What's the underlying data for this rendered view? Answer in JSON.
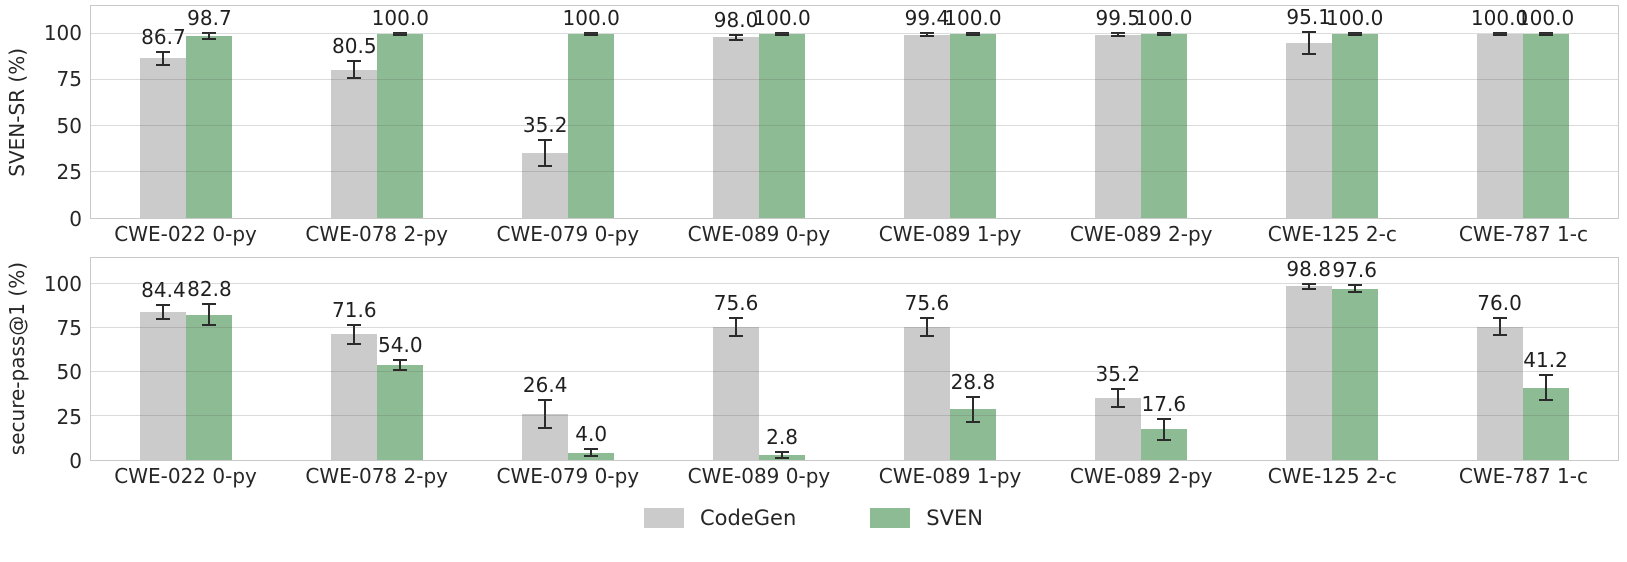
{
  "chart_data": [
    {
      "type": "bar",
      "ylabel": "SVEN-SR (%)",
      "xlabel": "",
      "ylim": [
        0,
        115
      ],
      "yticks": [
        0,
        25,
        50,
        75,
        100
      ],
      "grid": "horizontal",
      "categories": [
        "CWE-022 0-py",
        "CWE-078 2-py",
        "CWE-079 0-py",
        "CWE-089 0-py",
        "CWE-089 1-py",
        "CWE-089 2-py",
        "CWE-125 2-c",
        "CWE-787 1-c"
      ],
      "series": [
        {
          "name": "CodeGen",
          "color": "#cbcbcb",
          "values": [
            86.7,
            80.5,
            35.2,
            98.0,
            99.4,
            99.5,
            95.1,
            100.0
          ],
          "errors": [
            3.5,
            4.5,
            7.0,
            1.5,
            0.8,
            0.8,
            6.0,
            0.5
          ]
        },
        {
          "name": "SVEN",
          "color": "#8dbb93",
          "values": [
            98.7,
            100.0,
            100.0,
            100.0,
            100.0,
            100.0,
            100.0,
            100.0
          ],
          "errors": [
            1.4,
            0.5,
            0.5,
            0.5,
            0.5,
            0.5,
            0.5,
            0.5
          ]
        }
      ]
    },
    {
      "type": "bar",
      "ylabel": "secure-pass@1 (%)",
      "xlabel": "",
      "ylim": [
        0,
        115
      ],
      "yticks": [
        0,
        25,
        50,
        75,
        100
      ],
      "grid": "horizontal",
      "categories": [
        "CWE-022 0-py",
        "CWE-078 2-py",
        "CWE-079 0-py",
        "CWE-089 0-py",
        "CWE-089 1-py",
        "CWE-089 2-py",
        "CWE-125 2-c",
        "CWE-787 1-c"
      ],
      "series": [
        {
          "name": "CodeGen",
          "color": "#cbcbcb",
          "values": [
            84.4,
            71.6,
            26.4,
            75.6,
            75.6,
            35.2,
            98.8,
            76.0
          ],
          "errors": [
            4.0,
            5.5,
            8.0,
            5.0,
            5.0,
            5.0,
            1.5,
            5.0
          ]
        },
        {
          "name": "SVEN",
          "color": "#8dbb93",
          "values": [
            82.8,
            54.0,
            4.0,
            2.8,
            28.8,
            17.6,
            97.6,
            41.2
          ],
          "errors": [
            6.0,
            3.0,
            2.0,
            1.5,
            7.0,
            6.0,
            2.0,
            7.0
          ]
        }
      ]
    }
  ],
  "legend": {
    "items": [
      {
        "label": "CodeGen",
        "color": "#cbcbcb"
      },
      {
        "label": "SVEN",
        "color": "#8dbb93"
      }
    ]
  },
  "colors": {
    "codegen": "#cbcbcb",
    "sven": "#8dbb93",
    "errorbar": "#2b2b2b",
    "spine": "#c9c9c9"
  }
}
